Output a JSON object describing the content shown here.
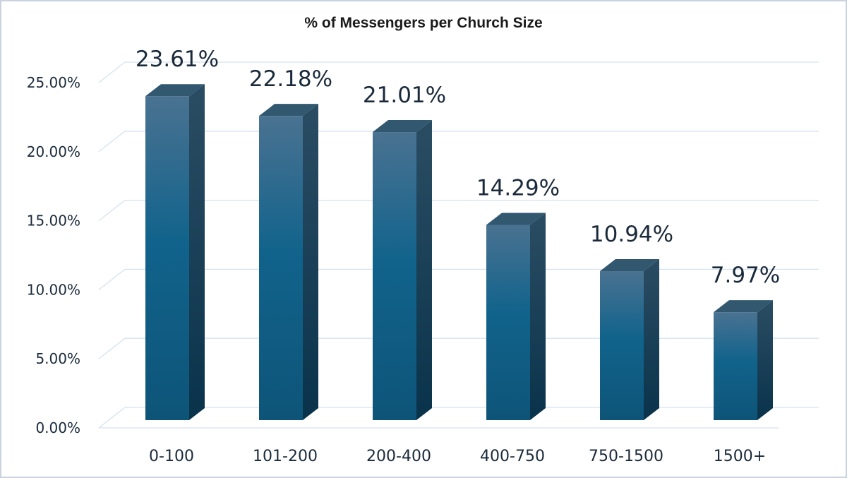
{
  "chart_data": {
    "type": "bar",
    "title": "% of Messengers per Church Size",
    "xlabel": "",
    "ylabel": "",
    "categories": [
      "0-100",
      "101-200",
      "200-400",
      "400-750",
      "750-1500",
      "1500+"
    ],
    "values": [
      23.61,
      22.18,
      21.01,
      14.29,
      10.94,
      7.97
    ],
    "data_labels": [
      "23.61%",
      "22.18%",
      "21.01%",
      "14.29%",
      "10.94%",
      "7.97%"
    ],
    "ylim": [
      0,
      25
    ],
    "yticks": [
      0,
      5,
      10,
      15,
      20,
      25
    ],
    "ytick_labels": [
      "0.00%",
      "5.00%",
      "10.00%",
      "15.00%",
      "20.00%",
      "25.00%"
    ],
    "grid": true,
    "style": "3d-column",
    "colors": {
      "bar_top": "#4a7291",
      "bar_front": "#115b82",
      "bar_side": "#0c3b55",
      "bar_cap": "#325870",
      "gridline": "#d5e2f0",
      "border": "#c9d3df"
    }
  }
}
